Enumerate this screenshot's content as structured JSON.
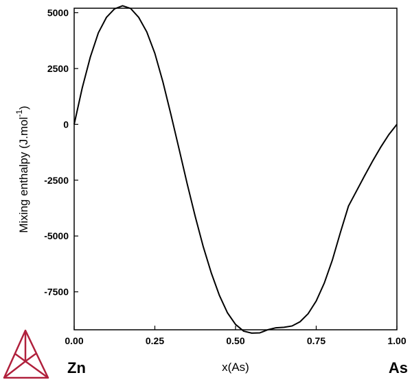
{
  "chart_data": {
    "type": "line",
    "xlabel": "x(As)",
    "ylabel_main": "Mixing enthalpy (J.mol",
    "ylabel_sup": "-1",
    "ylabel_close": ")",
    "xlim": [
      0,
      1
    ],
    "ylim": [
      -9200,
      5200
    ],
    "x_ticks": [
      0,
      0.25,
      0.5,
      0.75,
      1
    ],
    "x_tick_labels": [
      "0.00",
      "0.25",
      "0.50",
      "0.75",
      "1.00"
    ],
    "y_ticks": [
      5000,
      2500,
      0,
      -2500,
      -5000,
      -7500
    ],
    "y_tick_labels": [
      "5000",
      "2500",
      "0",
      "-2500",
      "-5000",
      "-7500"
    ],
    "grid": false,
    "endpoint_labels": {
      "left": "Zn",
      "right": "As"
    },
    "series": [
      {
        "color": "#000000",
        "x": [
          0,
          0.025,
          0.05,
          0.075,
          0.1,
          0.125,
          0.15,
          0.175,
          0.2,
          0.225,
          0.25,
          0.275,
          0.3,
          0.325,
          0.35,
          0.375,
          0.4,
          0.425,
          0.45,
          0.475,
          0.5,
          0.525,
          0.55,
          0.575,
          0.6,
          0.625,
          0.65,
          0.675,
          0.7,
          0.725,
          0.75,
          0.775,
          0.8,
          0.825,
          0.85,
          0.875,
          0.9,
          0.925,
          0.95,
          0.975,
          1
        ],
        "y": [
          0,
          1630,
          3010,
          4100,
          4790,
          5170,
          5310,
          5190,
          4790,
          4140,
          3180,
          1900,
          430,
          -1100,
          -2650,
          -4120,
          -5480,
          -6660,
          -7660,
          -8440,
          -8960,
          -9260,
          -9350,
          -9340,
          -9200,
          -9110,
          -9090,
          -9030,
          -8840,
          -8480,
          -7910,
          -7110,
          -6080,
          -4840,
          -3660,
          -2980,
          -2300,
          -1640,
          -1020,
          -460,
          0
        ]
      }
    ]
  },
  "logo": {
    "name": "triangle-logo-icon",
    "color": "#b0203c"
  }
}
